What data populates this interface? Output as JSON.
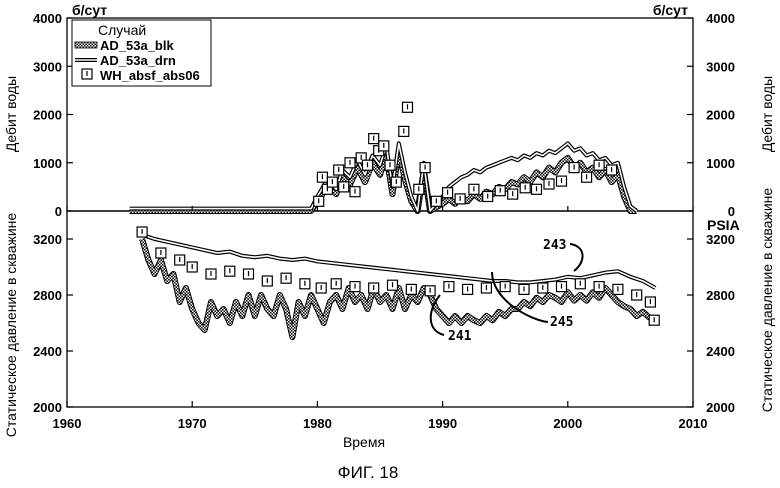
{
  "figure": {
    "caption": "ФИГ. 18"
  },
  "chart_data": [
    {
      "type": "line",
      "panel": "top",
      "ylabel_left": "Дебит воды",
      "ylabel_right": "Дебит воды",
      "unit_left": "б/сут",
      "unit_right": "б/сут",
      "ylim": [
        0,
        4000
      ],
      "yticks_left": [
        "0",
        "1000",
        "2000",
        "3000",
        "4000"
      ],
      "yticks_right": [
        "0",
        "1000",
        "2000",
        "3000",
        "4000"
      ],
      "ytick_values": [
        0,
        1000,
        2000,
        3000,
        4000
      ],
      "legend": {
        "title": "Случай",
        "placement": "top-left",
        "entries": [
          {
            "label": "AD_53a_blk",
            "style": "thick-hatched-line"
          },
          {
            "label": "AD_53a_drn",
            "style": "double-line"
          },
          {
            "label": "WH_absf_abs06",
            "style": "square-marker"
          }
        ]
      },
      "series": [
        {
          "name": "AD_53a_blk",
          "x": [
            1965,
            1979.5,
            1980,
            1980.8,
            1981.5,
            1982,
            1982.6,
            1983.2,
            1983.8,
            1984.4,
            1985,
            1985.5,
            1986,
            1986.5,
            1987,
            1987.5,
            1988,
            1988.5,
            1989,
            1989.5,
            1990,
            1990.5,
            1991,
            1991.5,
            1992,
            1992.5,
            1993,
            1993.5,
            1994,
            1994.5,
            1995,
            1995.5,
            1996,
            1996.5,
            1997,
            1997.5,
            1998,
            1998.5,
            1999,
            1999.5,
            2000,
            2000.5,
            2001,
            2001.5,
            2002,
            2002.5,
            2003,
            2003.5,
            2004,
            2004.5,
            2005,
            2005.5
          ],
          "y": [
            0,
            0,
            200,
            500,
            350,
            700,
            550,
            900,
            600,
            1000,
            750,
            1150,
            350,
            1250,
            650,
            200,
            0,
            850,
            0,
            80,
            150,
            250,
            150,
            300,
            200,
            350,
            250,
            400,
            350,
            500,
            450,
            600,
            550,
            700,
            600,
            800,
            700,
            900,
            800,
            1000,
            1100,
            900,
            1000,
            800,
            900,
            700,
            850,
            600,
            750,
            300,
            0,
            0
          ]
        },
        {
          "name": "AD_53a_drn",
          "x": [
            1965,
            1979.5,
            1980,
            1980.8,
            1981.5,
            1982,
            1982.6,
            1983.2,
            1983.8,
            1984.4,
            1985,
            1985.5,
            1986,
            1986.5,
            1987,
            1987.5,
            1988,
            1988.5,
            1989,
            1989.5,
            1990,
            1990.5,
            1991,
            1991.5,
            1992,
            1992.5,
            1993,
            1993.5,
            1994,
            1994.5,
            1995,
            1995.5,
            1996,
            1996.5,
            1997,
            1997.5,
            1998,
            1998.5,
            1999,
            1999.5,
            2000,
            2000.5,
            2001,
            2001.5,
            2002,
            2002.5,
            2003,
            2003.5,
            2004,
            2004.5,
            2005,
            2005.5
          ],
          "y": [
            50,
            50,
            300,
            650,
            450,
            850,
            700,
            1050,
            750,
            1150,
            950,
            1350,
            500,
            1400,
            800,
            300,
            0,
            1000,
            0,
            150,
            300,
            500,
            600,
            700,
            750,
            850,
            800,
            900,
            950,
            1000,
            1050,
            1100,
            1050,
            1150,
            1100,
            1200,
            1150,
            1250,
            1200,
            1300,
            1400,
            1250,
            1300,
            1150,
            1200,
            1050,
            1100,
            950,
            1000,
            500,
            100,
            0
          ]
        },
        {
          "name": "WH_absf_abs06",
          "x": [
            1980.1,
            1980.4,
            1980.8,
            1981.2,
            1981.7,
            1982.1,
            1982.6,
            1983.0,
            1983.5,
            1984.0,
            1984.5,
            1984.9,
            1985.3,
            1985.8,
            1986.3,
            1986.9,
            1987.2,
            1988.1,
            1988.6,
            1989.5,
            1990.4,
            1991.4,
            1992.5,
            1993.6,
            1994.6,
            1995.6,
            1996.6,
            1997.5,
            1998.5,
            1999.5,
            2000.5,
            2001.5,
            2002.5,
            2003.5
          ],
          "y": [
            200,
            700,
            450,
            600,
            850,
            500,
            1000,
            400,
            1100,
            950,
            1500,
            1250,
            1350,
            950,
            600,
            1650,
            2150,
            450,
            900,
            200,
            380,
            250,
            450,
            300,
            420,
            350,
            480,
            450,
            560,
            620,
            900,
            700,
            950,
            850
          ]
        }
      ]
    },
    {
      "type": "line",
      "panel": "bottom",
      "xlabel": "Время",
      "ylabel_left": "Статическое давление в скважине",
      "ylabel_right": "Статическое давление в скважине",
      "unit_right": "PSIA",
      "xlim": [
        1960,
        2010
      ],
      "ylim": [
        2000,
        3400
      ],
      "xticks": [
        "1960",
        "1970",
        "1980",
        "1990",
        "2000",
        "2010"
      ],
      "xtick_values": [
        1960,
        1970,
        1980,
        1990,
        2000,
        2010
      ],
      "yticks_left": [
        "2000",
        "2400",
        "2800",
        "3200"
      ],
      "yticks_right": [
        "2000",
        "2400",
        "2800",
        "3200"
      ],
      "ytick_values": [
        2000,
        2400,
        2800,
        3200
      ],
      "annotations": [
        {
          "text": "243",
          "points_to": "AD_53a_drn"
        },
        {
          "text": "245",
          "points_to": "WH_absf_abs06"
        },
        {
          "text": "241",
          "points_to": "AD_53a_blk"
        }
      ],
      "series": [
        {
          "name": "AD_53a_blk",
          "x": [
            1966,
            1966.5,
            1967,
            1967.5,
            1968,
            1968.5,
            1969,
            1969.5,
            1970,
            1970.5,
            1971,
            1971.5,
            1972,
            1972.5,
            1973,
            1973.5,
            1974,
            1974.5,
            1975,
            1975.5,
            1976,
            1976.5,
            1977,
            1977.5,
            1978,
            1978.5,
            1979,
            1979.5,
            1980,
            1980.5,
            1981,
            1981.5,
            1982,
            1982.5,
            1983,
            1983.5,
            1984,
            1984.5,
            1985,
            1985.5,
            1986,
            1986.5,
            1987,
            1987.5,
            1988,
            1988.5,
            1989,
            1989.5,
            1990,
            1990.5,
            1991,
            1991.5,
            1992,
            1992.5,
            1993,
            1993.5,
            1994,
            1994.5,
            1995,
            1995.5,
            1996,
            1996.5,
            1997,
            1997.5,
            1998,
            1998.5,
            1999,
            1999.5,
            2000,
            2000.5,
            2001,
            2001.5,
            2002,
            2002.5,
            2003,
            2003.5,
            2004,
            2004.5,
            2005,
            2005.5,
            2006,
            2006.5,
            2007
          ],
          "y": [
            3200,
            3050,
            2950,
            3050,
            2900,
            2950,
            2750,
            2850,
            2700,
            2600,
            2550,
            2750,
            2650,
            2700,
            2600,
            2750,
            2650,
            2800,
            2650,
            2800,
            2700,
            2650,
            2800,
            2700,
            2500,
            2750,
            2650,
            2800,
            2700,
            2600,
            2750,
            2800,
            2700,
            2850,
            2750,
            2800,
            2700,
            2850,
            2750,
            2800,
            2700,
            2850,
            2700,
            2800,
            2750,
            2850,
            2800,
            2700,
            2650,
            2600,
            2650,
            2600,
            2650,
            2620,
            2600,
            2650,
            2620,
            2680,
            2650,
            2700,
            2700,
            2750,
            2720,
            2780,
            2750,
            2800,
            2780,
            2750,
            2820,
            2760,
            2800,
            2760,
            2820,
            2780,
            2850,
            2800,
            2750,
            2720,
            2700,
            2650,
            2680,
            2640,
            2620
          ]
        },
        {
          "name": "AD_53a_drn",
          "x": [
            1966,
            1967,
            1968,
            1969,
            1970,
            1971,
            1972,
            1973,
            1974,
            1975,
            1976,
            1977,
            1978,
            1979,
            1980,
            1981,
            1982,
            1983,
            1984,
            1985,
            1986,
            1987,
            1988,
            1989,
            1990,
            1991,
            1992,
            1993,
            1994,
            1995,
            1996,
            1997,
            1998,
            1999,
            2000,
            2001,
            2002,
            2003,
            2004,
            2005,
            2006,
            2007
          ],
          "y": [
            3230,
            3200,
            3180,
            3160,
            3140,
            3120,
            3100,
            3110,
            3080,
            3070,
            3080,
            3060,
            3050,
            3060,
            3040,
            3030,
            3020,
            3010,
            3000,
            2990,
            2980,
            2970,
            2960,
            2950,
            2940,
            2930,
            2920,
            2910,
            2900,
            2900,
            2890,
            2890,
            2900,
            2910,
            2930,
            2920,
            2940,
            2960,
            2970,
            2930,
            2900,
            2850
          ]
        },
        {
          "name": "WH_absf_abs06",
          "x": [
            1966,
            1967.5,
            1969,
            1970,
            1971.5,
            1973,
            1974.5,
            1976,
            1977.5,
            1979,
            1980.3,
            1981.5,
            1983,
            1984.5,
            1986,
            1987.5,
            1989,
            1990.5,
            1992,
            1993.5,
            1995,
            1996.5,
            1998,
            1999.5,
            2001,
            2002.5,
            2004,
            2005.5,
            2006.6,
            2006.9
          ],
          "y": [
            3250,
            3100,
            3050,
            3000,
            2950,
            2970,
            2950,
            2900,
            2920,
            2880,
            2850,
            2880,
            2860,
            2850,
            2870,
            2840,
            2830,
            2860,
            2840,
            2850,
            2860,
            2840,
            2850,
            2860,
            2880,
            2860,
            2840,
            2800,
            2750,
            2620
          ]
        }
      ]
    }
  ]
}
